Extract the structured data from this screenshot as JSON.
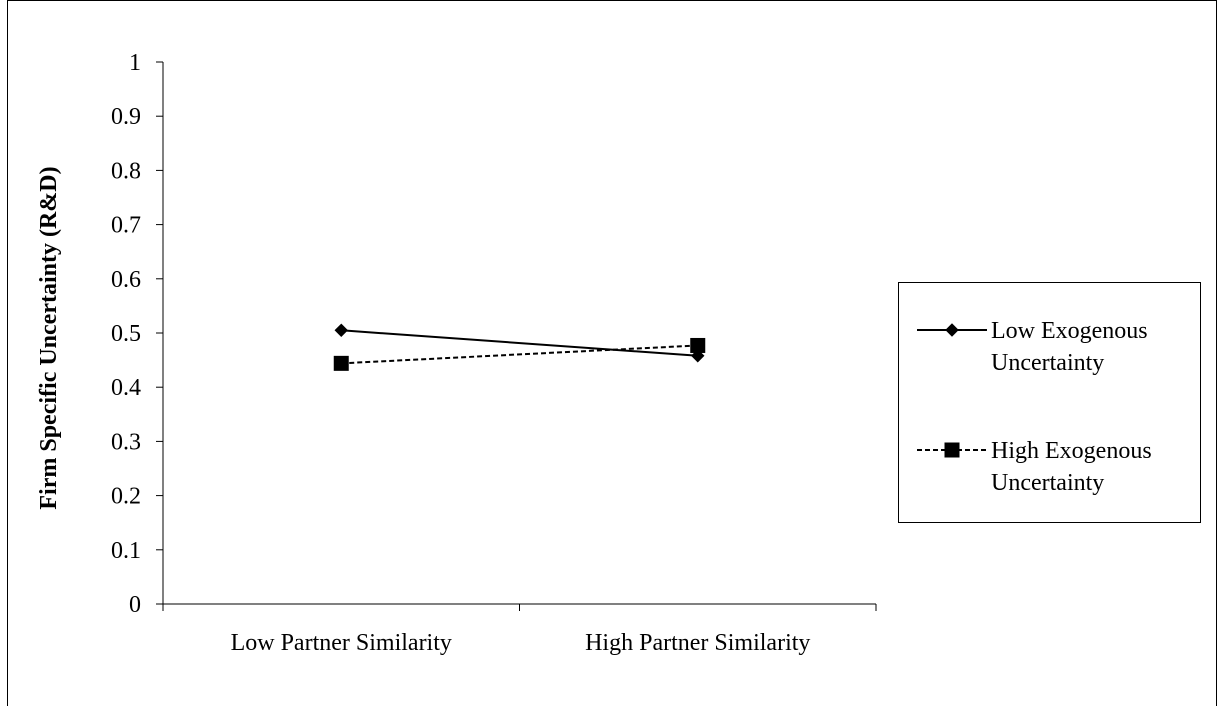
{
  "chart_data": {
    "type": "line",
    "categories": [
      "Low Partner Similarity",
      "High Partner Similarity"
    ],
    "series": [
      {
        "name": "Low Exogenous Uncertainty",
        "name_lines": [
          "Low Exogenous",
          "Uncertainty"
        ],
        "values": [
          0.505,
          0.458
        ],
        "line_style": "solid",
        "marker": "diamond",
        "color": "#000000"
      },
      {
        "name": "High Exogenous Uncertainty",
        "name_lines": [
          "High Exogenous",
          "Uncertainty"
        ],
        "values": [
          0.444,
          0.477
        ],
        "line_style": "dashed",
        "marker": "square",
        "color": "#000000"
      }
    ],
    "ylabel": "Firm Specific Uncertainty (R&D)",
    "xlabel": "",
    "ylim": [
      0,
      1
    ],
    "yticks": [
      "0",
      "0.1",
      "0.2",
      "0.3",
      "0.4",
      "0.5",
      "0.6",
      "0.7",
      "0.8",
      "0.9",
      "1"
    ],
    "grid": false,
    "legend_position": "right"
  }
}
